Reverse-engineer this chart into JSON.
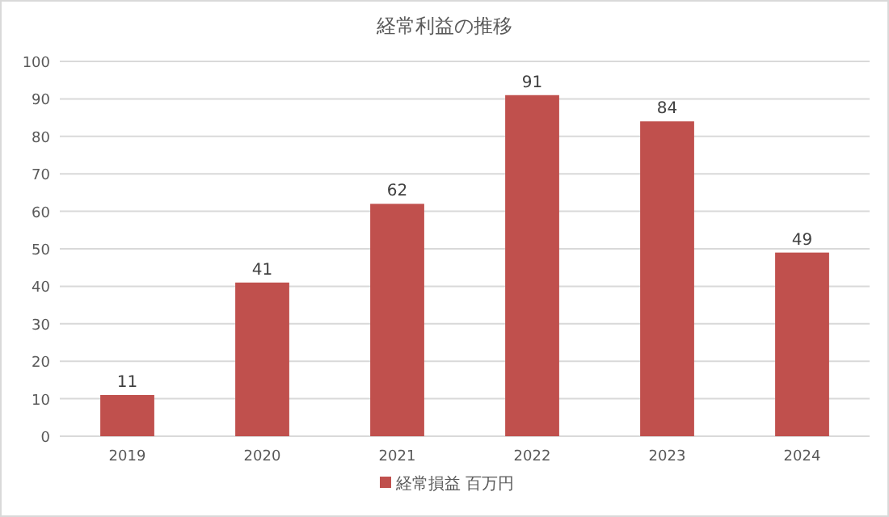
{
  "chart_data": {
    "type": "bar",
    "title": "経常利益の推移",
    "categories": [
      "2019",
      "2020",
      "2021",
      "2022",
      "2023",
      "2024"
    ],
    "series": [
      {
        "name": "経常損益 百万円",
        "color": "#c0504d",
        "values": [
          11,
          41,
          62,
          91,
          84,
          49
        ]
      }
    ],
    "ylim": [
      0,
      100
    ],
    "yticks": [
      0,
      10,
      20,
      30,
      40,
      50,
      60,
      70,
      80,
      90,
      100
    ],
    "grid": "y",
    "legend": "bottom",
    "data_labels": true
  }
}
